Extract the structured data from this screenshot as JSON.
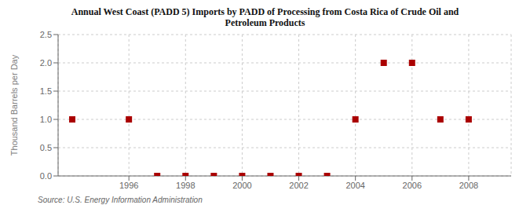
{
  "chart_data": {
    "type": "scatter",
    "title": "Annual West Coast (PADD 5) Imports by PADD of Processing from Costa Rica of Crude Oil and\nPetroleum Products",
    "ylabel": "Thousand Barrels per Day",
    "source": "Source: U.S. Energy Information Administration",
    "x": [
      1994,
      1996,
      1997,
      1998,
      1999,
      2000,
      2001,
      2002,
      2003,
      2004,
      2005,
      2006,
      2007,
      2008
    ],
    "values": [
      1.0,
      1.0,
      0.0,
      0.0,
      0.0,
      0.0,
      0.0,
      0.0,
      0.0,
      1.0,
      2.0,
      2.0,
      1.0,
      1.0
    ],
    "xlim": [
      1993.5,
      2009.5
    ],
    "ylim": [
      0,
      2.5
    ],
    "xticks": [
      1996,
      1998,
      2000,
      2002,
      2004,
      2006,
      2008
    ],
    "yticks": [
      {
        "value": 0,
        "label": "0.0"
      },
      0.5,
      {
        "value": 1,
        "label": "1.0"
      },
      1.5,
      {
        "value": 2,
        "label": "2.0"
      },
      2.5
    ],
    "color": "#aa0000",
    "marker": "square",
    "grid": true
  }
}
